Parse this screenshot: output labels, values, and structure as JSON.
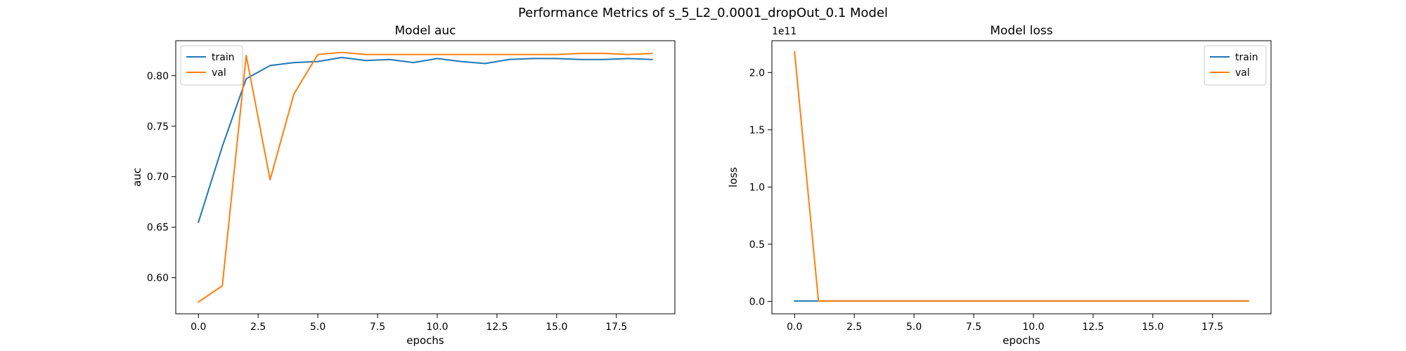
{
  "figure": {
    "suptitle": "Performance Metrics of s_5_L2_0.0001_dropOut_0.1 Model"
  },
  "chart_data": [
    {
      "type": "line",
      "title": "Model auc",
      "xlabel": "epochs",
      "ylabel": "auc",
      "xlim": [
        -0.95,
        19.95
      ],
      "ylim": [
        0.5643,
        0.8346
      ],
      "xticks": [
        0.0,
        2.5,
        5.0,
        7.5,
        10.0,
        12.5,
        15.0,
        17.5
      ],
      "xtick_labels": [
        "0.0",
        "2.5",
        "5.0",
        "7.5",
        "10.0",
        "12.5",
        "15.0",
        "17.5"
      ],
      "yticks": [
        0.6,
        0.65,
        0.7,
        0.75,
        0.8
      ],
      "ytick_labels": [
        "0.60",
        "0.65",
        "0.70",
        "0.75",
        "0.80"
      ],
      "legend_position": "top-left",
      "grid": false,
      "x": [
        0,
        1,
        2,
        3,
        4,
        5,
        6,
        7,
        8,
        9,
        10,
        11,
        12,
        13,
        14,
        15,
        16,
        17,
        18,
        19
      ],
      "series": [
        {
          "name": "train",
          "color": "#1f77b4",
          "values": [
            0.655,
            0.73,
            0.797,
            0.81,
            0.813,
            0.814,
            0.818,
            0.815,
            0.816,
            0.813,
            0.817,
            0.814,
            0.812,
            0.816,
            0.817,
            0.817,
            0.816,
            0.816,
            0.817,
            0.816
          ]
        },
        {
          "name": "val",
          "color": "#ff7f0e",
          "values": [
            0.576,
            0.592,
            0.82,
            0.697,
            0.782,
            0.821,
            0.823,
            0.821,
            0.821,
            0.821,
            0.821,
            0.821,
            0.821,
            0.821,
            0.821,
            0.821,
            0.822,
            0.822,
            0.821,
            0.822
          ]
        }
      ]
    },
    {
      "type": "line",
      "title": "Model loss",
      "xlabel": "epochs",
      "ylabel": "loss",
      "y_offset_label": "1e11",
      "xlim": [
        -0.95,
        19.95
      ],
      "ylim": [
        -0.108,
        2.278
      ],
      "xticks": [
        0.0,
        2.5,
        5.0,
        7.5,
        10.0,
        12.5,
        15.0,
        17.5
      ],
      "xtick_labels": [
        "0.0",
        "2.5",
        "5.0",
        "7.5",
        "10.0",
        "12.5",
        "15.0",
        "17.5"
      ],
      "yticks": [
        0.0,
        0.5,
        1.0,
        1.5,
        2.0
      ],
      "ytick_labels": [
        "0.0",
        "0.5",
        "1.0",
        "1.5",
        "2.0"
      ],
      "legend_position": "top-right",
      "grid": false,
      "x": [
        0,
        1,
        2,
        3,
        4,
        5,
        6,
        7,
        8,
        9,
        10,
        11,
        12,
        13,
        14,
        15,
        16,
        17,
        18,
        19
      ],
      "series": [
        {
          "name": "train",
          "color": "#1f77b4",
          "values": [
            0.004,
            0.004,
            0.004,
            0.004,
            0.004,
            0.004,
            0.004,
            0.004,
            0.004,
            0.004,
            0.004,
            0.004,
            0.004,
            0.004,
            0.004,
            0.004,
            0.004,
            0.004,
            0.004,
            0.004
          ]
        },
        {
          "name": "val",
          "color": "#ff7f0e",
          "values": [
            2.18,
            0.004,
            0.004,
            0.004,
            0.004,
            0.004,
            0.004,
            0.004,
            0.004,
            0.004,
            0.004,
            0.004,
            0.004,
            0.004,
            0.004,
            0.004,
            0.004,
            0.004,
            0.004,
            0.004
          ]
        }
      ]
    }
  ]
}
